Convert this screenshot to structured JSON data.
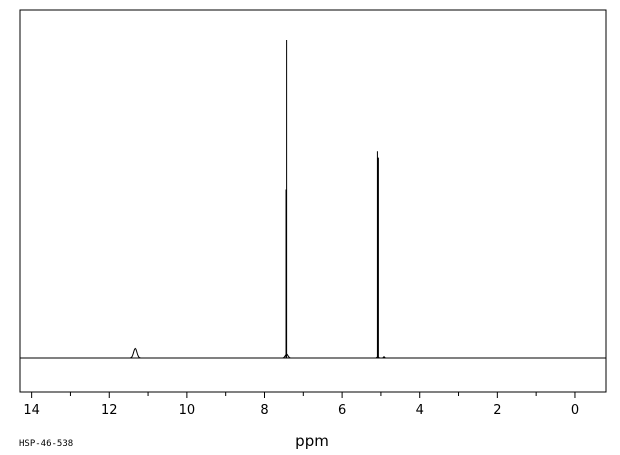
{
  "chart_data": {
    "type": "line",
    "xlabel": "ppm",
    "xlim": [
      14.3,
      -0.8
    ],
    "x_reversed": true,
    "ylim": [
      0,
      1
    ],
    "grid": false,
    "ticks": [
      14,
      12,
      10,
      8,
      6,
      4,
      2,
      0
    ],
    "tick_labels": [
      "14",
      "12",
      "10",
      "8",
      "6",
      "4",
      "2",
      "0"
    ],
    "peaks": [
      {
        "ppm": 11.33,
        "height": 0.03,
        "width": 0.06,
        "type": "broad"
      },
      {
        "ppm": 7.43,
        "height": 1.0,
        "type": "sharp"
      },
      {
        "ppm": 7.445,
        "height": 0.53,
        "type": "sharp"
      },
      {
        "ppm": 5.09,
        "height": 0.65,
        "type": "sharp"
      },
      {
        "ppm": 5.065,
        "height": 0.63,
        "type": "sharp"
      }
    ],
    "spectrum_code": "HSP-46-538"
  }
}
